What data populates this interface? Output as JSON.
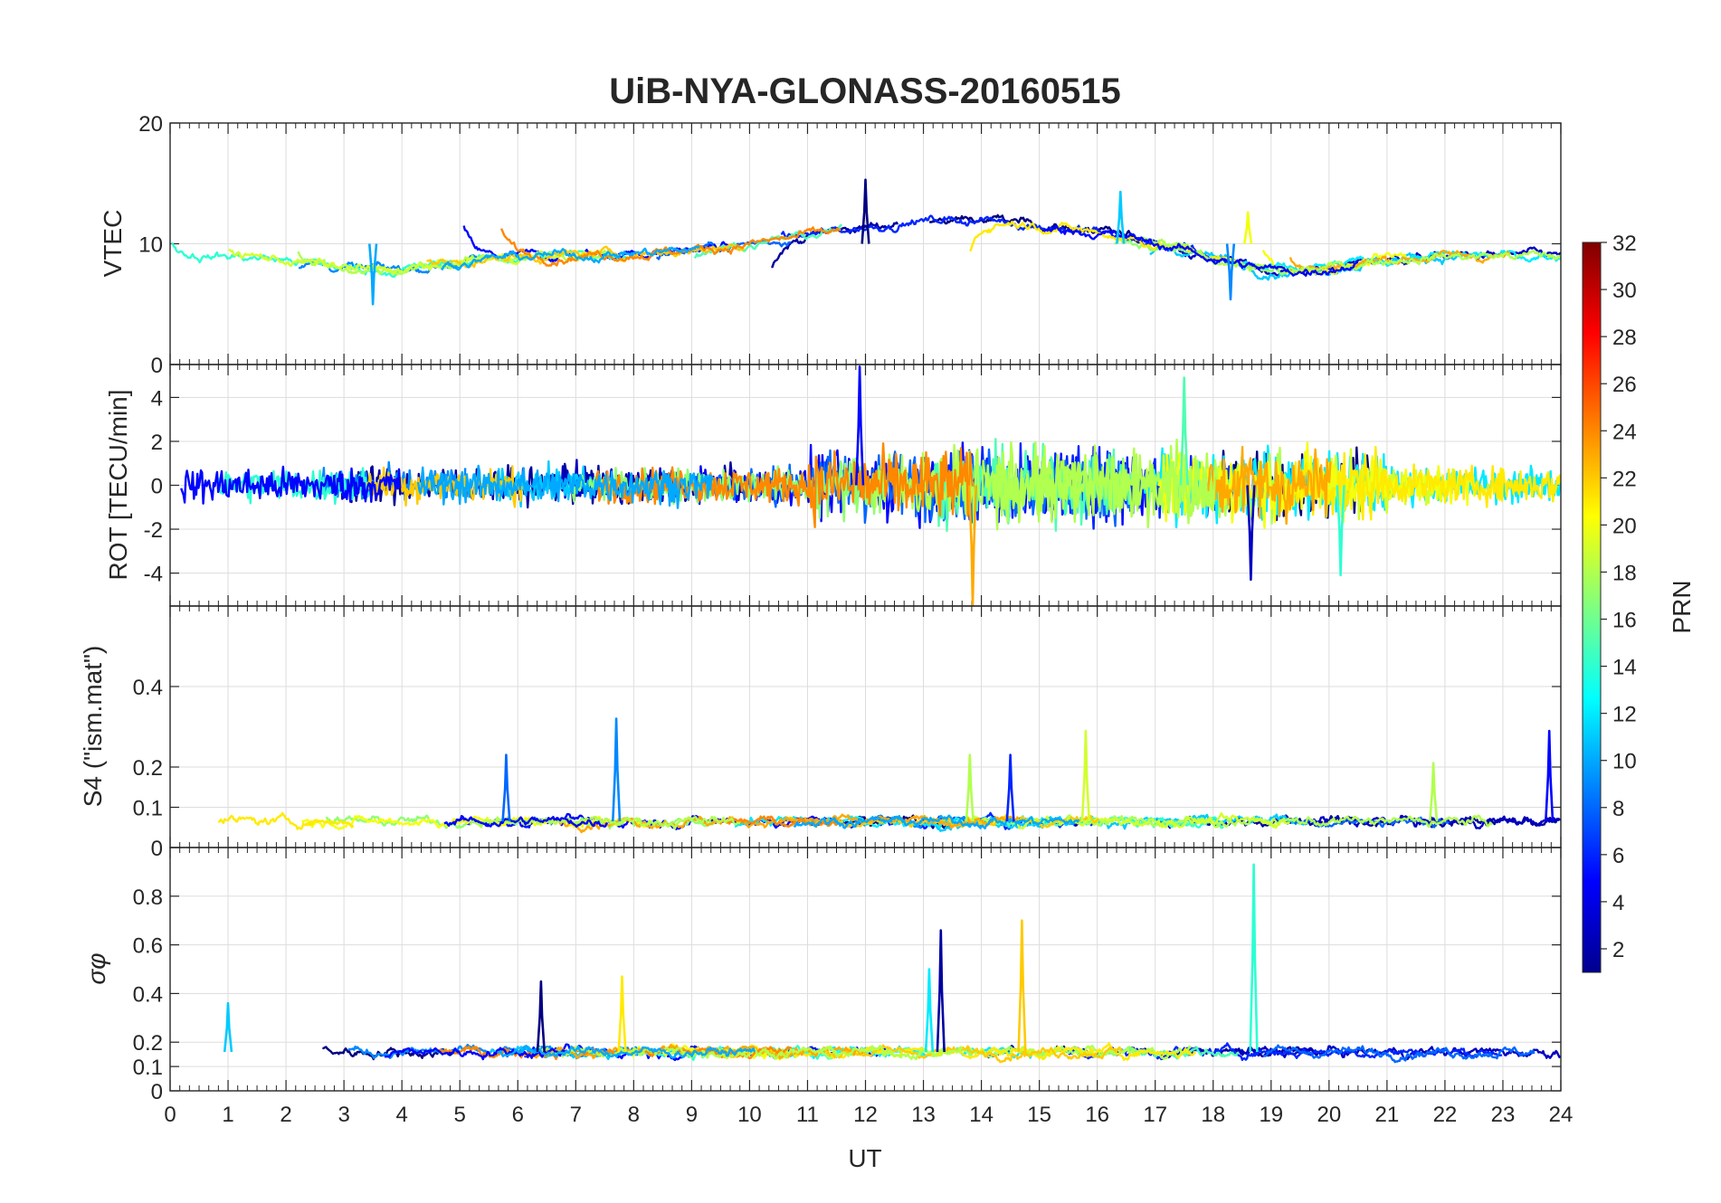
{
  "chart_data": {
    "type": "line",
    "title": "UiB-NYA-GLONASS-20160515",
    "xlabel": "UT",
    "xlim": [
      0,
      24
    ],
    "x_ticks": [
      "0",
      "1",
      "2",
      "3",
      "4",
      "5",
      "6",
      "7",
      "8",
      "9",
      "10",
      "11",
      "12",
      "13",
      "14",
      "15",
      "16",
      "17",
      "18",
      "19",
      "20",
      "21",
      "22",
      "23",
      "24"
    ],
    "grid": true,
    "colorbar": {
      "label": "PRN",
      "colormap": "jet",
      "range": [
        1,
        32
      ],
      "tick_labels": [
        "2",
        "4",
        "6",
        "8",
        "10",
        "12",
        "14",
        "16",
        "18",
        "20",
        "22",
        "24",
        "26",
        "28",
        "30",
        "32"
      ]
    },
    "panels": [
      {
        "id": "vtec",
        "ylabel": "VTEC",
        "ylim": [
          0,
          20
        ],
        "y_ticks": [
          "0",
          "10",
          "20"
        ],
        "typical_range": [
          5,
          15
        ],
        "features": [
          {
            "x": 12.0,
            "y": 15.3
          },
          {
            "x": 16.4,
            "y": 14.3
          },
          {
            "x": 18.6,
            "y": 12.6
          },
          {
            "x": 3.5,
            "y": 5.0
          },
          {
            "x": 18.3,
            "y": 5.4
          }
        ]
      },
      {
        "id": "rot",
        "ylabel": "ROT [TECU/min]",
        "ylim": [
          -5.5,
          5.5
        ],
        "y_ticks": [
          "-4",
          "-2",
          "0",
          "2",
          "4"
        ],
        "typical_range": [
          -1.0,
          1.0
        ],
        "features": [
          {
            "x": 11.9,
            "y": 5.4
          },
          {
            "x": 17.5,
            "y": 4.9
          },
          {
            "x": 13.85,
            "y": -5.5
          },
          {
            "x": 18.65,
            "y": -4.3
          },
          {
            "x": 20.2,
            "y": -4.1
          }
        ]
      },
      {
        "id": "s4",
        "ylabel": "S4 (\"ism.mat\")",
        "ylim": [
          0,
          0.6
        ],
        "y_ticks": [
          "0",
          "0.1",
          "0.2",
          "0.4"
        ],
        "typical_range": [
          0.03,
          0.1
        ],
        "features": [
          {
            "x": 7.7,
            "y": 0.32
          },
          {
            "x": 15.8,
            "y": 0.29
          },
          {
            "x": 23.8,
            "y": 0.29
          },
          {
            "x": 5.8,
            "y": 0.23
          },
          {
            "x": 13.8,
            "y": 0.23
          },
          {
            "x": 21.8,
            "y": 0.21
          },
          {
            "x": 14.5,
            "y": 0.23
          }
        ]
      },
      {
        "id": "sigma_phi",
        "ylabel": "σφ",
        "ylim": [
          0,
          1
        ],
        "y_ticks": [
          "0",
          "0.1",
          "0.2",
          "0.4",
          "0.6",
          "0.8"
        ],
        "typical_range": [
          0.1,
          0.22
        ],
        "features": [
          {
            "x": 18.7,
            "y": 0.93
          },
          {
            "x": 14.7,
            "y": 0.7
          },
          {
            "x": 13.3,
            "y": 0.66
          },
          {
            "x": 13.1,
            "y": 0.5
          },
          {
            "x": 7.8,
            "y": 0.47
          },
          {
            "x": 6.4,
            "y": 0.45
          },
          {
            "x": 1.0,
            "y": 0.36
          }
        ]
      }
    ]
  }
}
